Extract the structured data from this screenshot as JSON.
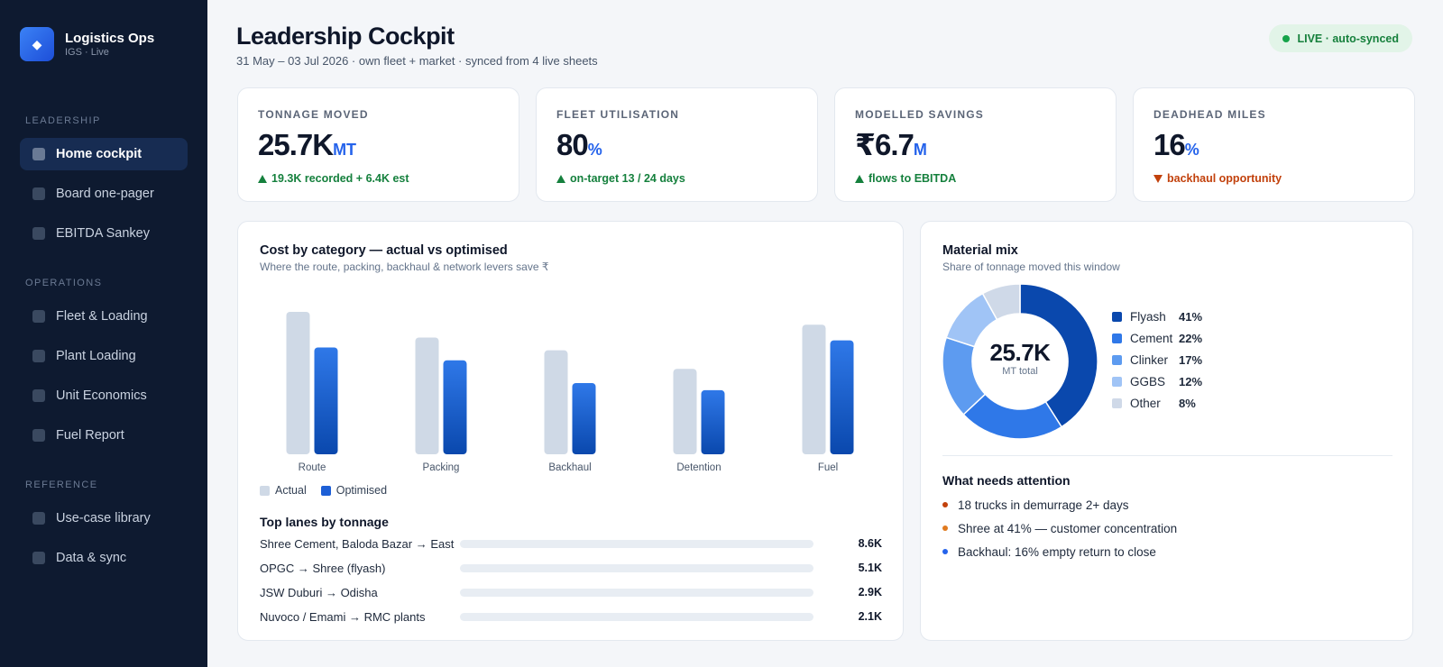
{
  "app": {
    "title": "Logistics Ops",
    "subtitle": "IGS · Live",
    "logo_icon": "diamond-icon"
  },
  "sidebar": {
    "sections": [
      {
        "label": "LEADERSHIP",
        "items": [
          {
            "label": "Home cockpit",
            "active": true
          },
          {
            "label": "Board one-pager"
          },
          {
            "label": "EBITDA Sankey"
          }
        ]
      },
      {
        "label": "OPERATIONS",
        "items": [
          {
            "label": "Fleet & Loading"
          },
          {
            "label": "Plant Loading"
          },
          {
            "label": "Unit Economics"
          },
          {
            "label": "Fuel Report"
          }
        ]
      },
      {
        "label": "REFERENCE",
        "items": [
          {
            "label": "Use-case library"
          },
          {
            "label": "Data & sync"
          }
        ]
      }
    ]
  },
  "header": {
    "title": "Leadership Cockpit",
    "subtitle": "31 May – 03 Jul 2026 · own fleet + market · synced from 4 live sheets",
    "badge": "LIVE · auto-synced"
  },
  "kpis": [
    {
      "label": "TONNAGE MOVED",
      "value": "25.7K",
      "unit": "MT",
      "note": "19.3K recorded + 6.4K est",
      "trend": "up"
    },
    {
      "label": "FLEET UTILISATION",
      "value": "80",
      "unit": "%",
      "note": "on-target 13 / 24 days",
      "trend": "up"
    },
    {
      "label": "MODELLED SAVINGS",
      "value": "₹6.7",
      "unit": "M",
      "note": "flows to EBITDA",
      "trend": "up"
    },
    {
      "label": "DEADHEAD MILES",
      "value": "16",
      "unit": "%",
      "note": "backhaul opportunity",
      "trend": "down"
    }
  ],
  "colors": {
    "actual": "#cfd9e6",
    "optimised": "#1d5fd6",
    "up": "#15803d",
    "down": "#c2410c"
  },
  "chart_data": {
    "type": "bar",
    "title": "Cost by category — actual vs optimised",
    "subtitle": "Where the route, packing, backhaul & network levers save ₹",
    "categories": [
      "Route",
      "Packing",
      "Backhaul",
      "Detention",
      "Fuel"
    ],
    "series": [
      {
        "name": "Actual",
        "values": [
          100,
          82,
          73,
          60,
          91
        ]
      },
      {
        "name": "Optimised",
        "values": [
          75,
          66,
          50,
          45,
          80
        ]
      }
    ],
    "ylim": [
      0,
      100
    ],
    "grid": false,
    "legend": "bottom-left",
    "xlabel": "",
    "ylabel": ""
  },
  "lanes": {
    "title": "Top lanes by tonnage",
    "rows": [
      {
        "name": "Shree Cement, Baloda Bazar → East",
        "value": "8.6K"
      },
      {
        "name": "OPGC → Shree (flyash)",
        "value": "5.1K"
      },
      {
        "name": "JSW Duburi → Odisha",
        "value": "2.9K"
      },
      {
        "name": "Nuvoco / Emami → RMC plants",
        "value": "2.1K"
      }
    ]
  },
  "mix": {
    "title": "Material mix",
    "subtitle": "Share of tonnage moved this window",
    "center_value": "25.7K",
    "center_label": "MT total",
    "slices": [
      {
        "name": "Flyash",
        "pct": 41,
        "label": "41%",
        "color": "#0a48ad"
      },
      {
        "name": "Cement",
        "pct": 22,
        "label": "22%",
        "color": "#2f78e8"
      },
      {
        "name": "Clinker",
        "pct": 17,
        "label": "17%",
        "color": "#5d9bf0"
      },
      {
        "name": "GGBS",
        "pct": 12,
        "label": "12%",
        "color": "#a0c4f6"
      },
      {
        "name": "Other",
        "pct": 8,
        "label": "8%",
        "color": "#cfd9e8"
      }
    ]
  },
  "attention": {
    "title": "What needs attention",
    "items": [
      {
        "text": "18 trucks in demurrage 2+ days",
        "color": "#c2410c"
      },
      {
        "text": "Shree at 41% — customer concentration",
        "color": "#e07a1f"
      },
      {
        "text": "Backhaul: 16% empty return to close",
        "color": "#2563eb"
      }
    ]
  }
}
